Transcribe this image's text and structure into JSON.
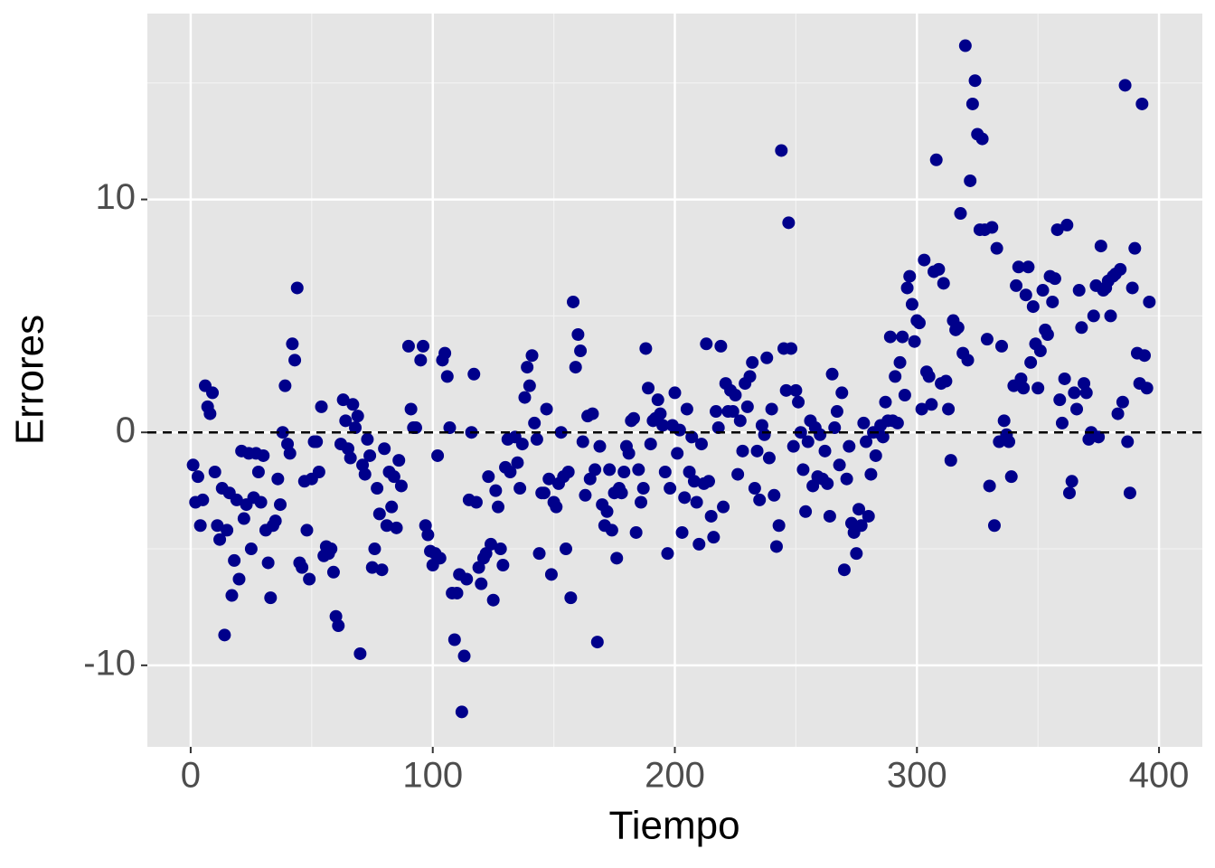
{
  "chart_data": {
    "type": "scatter",
    "xlabel": "Tiempo",
    "ylabel": "Errores",
    "color": "#00008b",
    "grid": true,
    "reference_line": 0,
    "xlim": [
      -17.9,
      417.9
    ],
    "ylim": [
      -13.5,
      17.98
    ],
    "xticks": [
      0,
      100,
      200,
      300,
      400
    ],
    "yticks": [
      -10,
      0,
      10
    ],
    "minor_xticks": [
      50,
      150,
      250,
      350
    ],
    "minor_yticks": [
      -5,
      5,
      15
    ],
    "x": [
      1,
      2,
      3,
      4,
      5,
      6,
      7,
      8,
      9,
      10,
      11,
      12,
      13,
      14,
      15,
      16,
      17,
      18,
      19,
      20,
      21,
      22,
      23,
      24,
      25,
      26,
      27,
      28,
      29,
      30,
      31,
      32,
      33,
      34,
      35,
      36,
      37,
      38,
      39,
      40,
      41,
      42,
      43,
      44,
      45,
      46,
      47,
      48,
      49,
      50,
      51,
      52,
      53,
      54,
      55,
      56,
      57,
      58,
      59,
      60,
      61,
      62,
      63,
      64,
      65,
      66,
      67,
      68,
      69,
      70,
      71,
      72,
      73,
      74,
      75,
      76,
      77,
      78,
      79,
      80,
      81,
      82,
      83,
      84,
      85,
      86,
      87,
      90,
      91,
      92,
      93,
      95,
      96,
      97,
      98,
      99,
      100,
      101,
      102,
      103,
      104,
      105,
      106,
      107,
      108,
      109,
      110,
      111,
      112,
      113,
      114,
      115,
      116,
      117,
      118,
      119,
      120,
      121,
      122,
      123,
      124,
      125,
      126,
      127,
      128,
      129,
      130,
      131,
      132,
      134,
      135,
      136,
      137,
      138,
      139,
      140,
      141,
      142,
      143,
      144,
      145,
      146,
      147,
      148,
      149,
      150,
      151,
      152,
      153,
      154,
      155,
      156,
      157,
      158,
      159,
      160,
      161,
      162,
      163,
      164,
      165,
      166,
      167,
      168,
      169,
      170,
      171,
      172,
      173,
      174,
      175,
      176,
      177,
      178,
      179,
      180,
      181,
      182,
      183,
      184,
      185,
      186,
      187,
      188,
      189,
      190,
      191,
      192,
      193,
      194,
      195,
      196,
      197,
      198,
      199,
      200,
      201,
      202,
      203,
      204,
      205,
      206,
      207,
      208,
      209,
      210,
      211,
      212,
      213,
      214,
      215,
      216,
      217,
      218,
      219,
      220,
      221,
      222,
      223,
      224,
      225,
      226,
      227,
      228,
      229,
      230,
      231,
      232,
      233,
      234,
      235,
      236,
      237,
      238,
      239,
      240,
      241,
      242,
      243,
      244,
      245,
      246,
      247,
      248,
      249,
      250,
      251,
      252,
      253,
      254,
      255,
      256,
      257,
      258,
      259,
      260,
      261,
      262,
      263,
      264,
      265,
      266,
      267,
      268,
      269,
      270,
      271,
      272,
      273,
      274,
      275,
      276,
      277,
      278,
      279,
      280,
      281,
      282,
      283,
      284,
      285,
      286,
      287,
      288,
      289,
      290,
      291,
      292,
      293,
      294,
      295,
      296,
      297,
      298,
      299,
      300,
      301,
      302,
      303,
      304,
      305,
      306,
      307,
      308,
      309,
      310,
      311,
      312,
      313,
      314,
      315,
      316,
      317,
      318,
      319,
      320,
      321,
      322,
      323,
      324,
      325,
      326,
      327,
      328,
      329,
      330,
      331,
      332,
      333,
      334,
      335,
      336,
      337,
      338,
      339,
      340,
      341,
      342,
      343,
      344,
      345,
      346,
      347,
      348,
      349,
      350,
      351,
      352,
      353,
      354,
      355,
      356,
      357,
      358,
      359,
      360,
      361,
      362,
      363,
      364,
      365,
      366,
      367,
      368,
      369,
      370,
      371,
      372,
      373,
      374,
      375,
      376,
      377,
      378,
      379,
      380,
      381,
      382,
      383,
      384,
      385,
      386,
      387,
      388,
      389,
      390,
      391,
      392,
      393,
      394,
      395,
      396
    ],
    "values": [
      -1.4,
      -3.0,
      -1.9,
      -4.0,
      -2.9,
      2.0,
      1.1,
      0.8,
      1.7,
      -1.7,
      -4.0,
      -4.6,
      -2.4,
      -8.7,
      -4.2,
      -2.6,
      -7.0,
      -5.5,
      -2.9,
      -6.3,
      -0.8,
      -3.7,
      -3.1,
      -0.9,
      -5.0,
      -2.8,
      -0.9,
      -1.7,
      -3.0,
      -1.0,
      -4.2,
      -5.6,
      -7.1,
      -4.0,
      -3.8,
      -2.0,
      -3.1,
      0.0,
      2.0,
      -0.5,
      -0.9,
      3.8,
      3.1,
      6.2,
      -5.6,
      -5.8,
      -2.1,
      -4.2,
      -6.3,
      -2.0,
      -0.4,
      -0.4,
      -1.7,
      1.1,
      -5.3,
      -4.9,
      -5.2,
      -5.0,
      -6.0,
      -7.9,
      -8.3,
      -0.5,
      1.4,
      0.5,
      -0.7,
      -1.1,
      1.2,
      0.2,
      0.7,
      -9.5,
      -1.4,
      -1.8,
      -0.3,
      -1.0,
      -5.8,
      -5.0,
      -2.4,
      -3.5,
      -5.9,
      -0.7,
      -4.0,
      -1.7,
      -3.2,
      -1.9,
      -4.1,
      -1.2,
      -2.3,
      3.7,
      1.0,
      0.2,
      0.2,
      3.1,
      3.7,
      -4.0,
      -4.4,
      -5.1,
      -5.7,
      -5.2,
      -1.0,
      -5.4,
      3.1,
      3.4,
      2.4,
      0.2,
      -6.9,
      -8.9,
      -6.9,
      -6.1,
      -12.0,
      -9.6,
      -6.3,
      -2.9,
      0.0,
      2.5,
      -3.0,
      -5.8,
      -6.5,
      -5.4,
      -5.2,
      -1.9,
      -4.8,
      -7.2,
      -2.5,
      -3.2,
      -5.0,
      -5.7,
      -1.5,
      -0.3,
      -1.7,
      -0.2,
      -1.3,
      -2.4,
      -0.5,
      1.5,
      2.8,
      2.0,
      3.3,
      0.4,
      -0.3,
      -5.2,
      -2.6,
      -2.6,
      1.0,
      -2.0,
      -6.1,
      -3.0,
      -3.2,
      -2.2,
      0.0,
      -1.9,
      -5.0,
      -1.7,
      -7.1,
      5.6,
      2.8,
      4.2,
      3.5,
      -0.4,
      -2.7,
      0.7,
      -2.0,
      0.8,
      -1.6,
      -9.0,
      -0.6,
      -3.1,
      -4.0,
      -3.4,
      -1.6,
      -4.2,
      -2.6,
      -5.4,
      -2.4,
      -2.6,
      -1.7,
      -0.6,
      -0.9,
      0.5,
      0.6,
      -4.3,
      -1.6,
      -3.0,
      -2.4,
      3.6,
      1.9,
      -0.5,
      0.5,
      0.6,
      1.4,
      0.8,
      0.3,
      -1.7,
      -5.2,
      -2.4,
      0.3,
      1.7,
      -0.9,
      0.1,
      -4.3,
      -2.8,
      1.0,
      -1.7,
      -0.2,
      -2.1,
      -3.0,
      -4.8,
      -0.5,
      -2.2,
      3.8,
      -2.1,
      -3.6,
      -4.5,
      0.9,
      0.2,
      3.7,
      -3.2,
      2.1,
      0.9,
      1.8,
      0.9,
      1.6,
      -1.8,
      0.5,
      -0.8,
      2.1,
      1.1,
      2.4,
      3.0,
      -2.4,
      -0.8,
      -2.9,
      0.3,
      -0.1,
      3.2,
      -1.1,
      1.0,
      -2.7,
      -4.9,
      -4.0,
      12.1,
      3.6,
      1.8,
      9.0,
      3.6,
      -0.6,
      1.8,
      1.3,
      0.0,
      -1.6,
      -3.4,
      -0.4,
      0.5,
      -2.3,
      0.2,
      -1.9,
      -0.1,
      -2.0,
      -0.8,
      -2.2,
      -3.6,
      2.5,
      0.2,
      0.9,
      -1.4,
      1.7,
      -5.9,
      -2.0,
      -0.6,
      -3.9,
      -4.3,
      -5.2,
      -3.3,
      -4.0,
      0.4,
      -0.4,
      -3.6,
      -1.8,
      0.0,
      -1.0,
      0.0,
      0.3,
      -0.2,
      1.3,
      0.5,
      4.1,
      0.5,
      2.4,
      0.4,
      3.0,
      4.1,
      1.6,
      6.2,
      6.7,
      5.5,
      3.9,
      4.8,
      4.7,
      1.0,
      7.4,
      2.6,
      2.4,
      1.2,
      6.9,
      11.7,
      7.0,
      2.1,
      6.4,
      2.2,
      1.0,
      -1.2,
      4.8,
      4.4,
      4.5,
      9.4,
      3.4,
      16.6,
      3.1,
      10.8,
      14.1,
      15.1,
      12.8,
      8.7,
      12.6,
      8.7,
      4.0,
      -2.3,
      8.8,
      -4.0,
      7.9,
      -0.4,
      3.7,
      0.5,
      -0.1,
      -0.4,
      -1.9,
      2.0,
      6.3,
      7.1,
      2.3,
      1.9,
      5.9,
      7.1,
      3.0,
      5.4,
      3.8,
      1.9,
      3.5,
      6.1,
      4.4,
      4.2,
      6.7,
      5.6,
      6.6,
      8.7,
      1.4,
      0.4,
      2.3,
      8.9,
      -2.6,
      -2.1,
      1.7,
      1.0,
      6.1,
      4.5,
      2.1,
      1.7,
      -0.3,
      0.0,
      5.0,
      6.3,
      -0.2,
      8.0,
      6.1,
      6.2,
      6.5,
      5.0,
      6.7,
      6.8,
      0.8,
      7.0,
      1.3,
      14.9,
      -0.4,
      -2.6,
      6.2,
      7.9,
      3.4,
      2.1,
      14.1,
      3.3,
      1.9,
      5.6
    ]
  }
}
